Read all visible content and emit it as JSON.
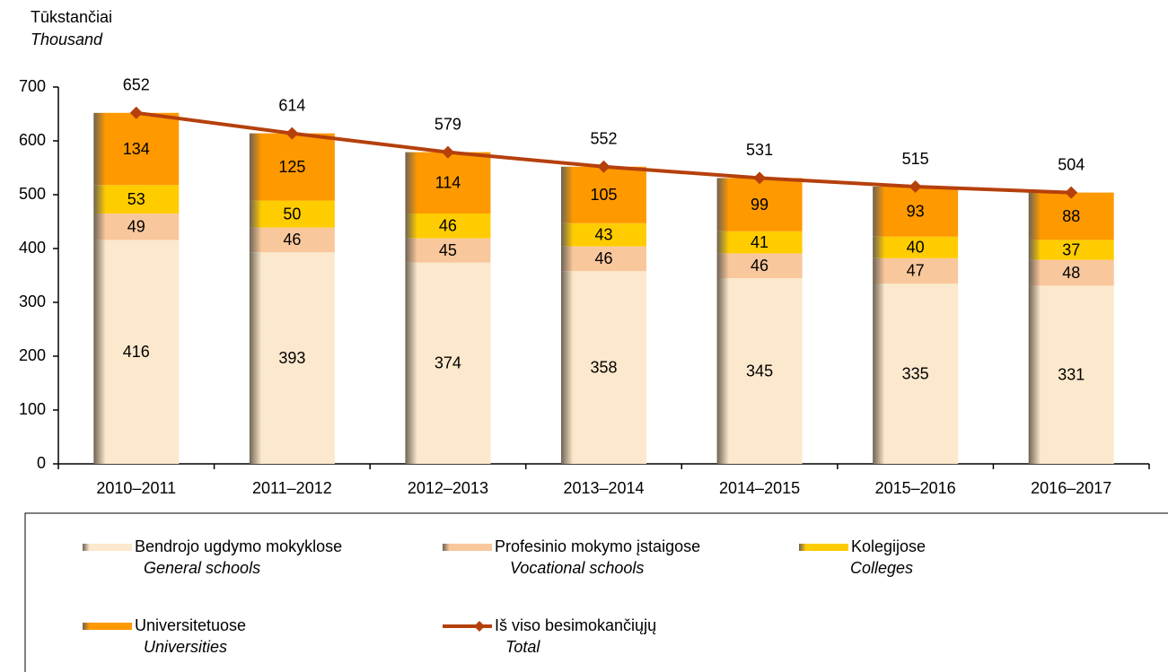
{
  "chart_data": {
    "type": "bar",
    "stacked": true,
    "y_label": "Tūkstančiai",
    "y_label_en": "Thousand",
    "categories": [
      "2010–2011",
      "2011–2012",
      "2012–2013",
      "2013–2014",
      "2014–2015",
      "2015–2016",
      "2016–2017"
    ],
    "series": [
      {
        "name": "Bendrojo ugdymo mokyklose",
        "name_en": "General schools",
        "color": "#fce8cc",
        "values": [
          416,
          393,
          374,
          358,
          345,
          335,
          331
        ]
      },
      {
        "name": "Profesinio mokymo įstaigose",
        "name_en": "Vocational schools",
        "color": "#f9c79c",
        "values": [
          49,
          46,
          45,
          46,
          46,
          47,
          48
        ]
      },
      {
        "name": "Kolegijose",
        "name_en": "Colleges",
        "color": "#ffcc00",
        "values": [
          53,
          50,
          46,
          43,
          41,
          40,
          37
        ]
      },
      {
        "name": "Universitetuose",
        "name_en": "Universities",
        "color": "#ff9900",
        "values": [
          134,
          125,
          114,
          105,
          99,
          93,
          88
        ]
      },
      {
        "name": "Iš viso besimokančiųjų",
        "name_en": "Total",
        "color": "#b5400c",
        "type": "line",
        "values": [
          652,
          614,
          579,
          552,
          531,
          515,
          504
        ]
      }
    ],
    "ylim": [
      0,
      700
    ],
    "yticks": [
      0,
      100,
      200,
      300,
      400,
      500,
      600,
      700
    ],
    "grid": false
  }
}
